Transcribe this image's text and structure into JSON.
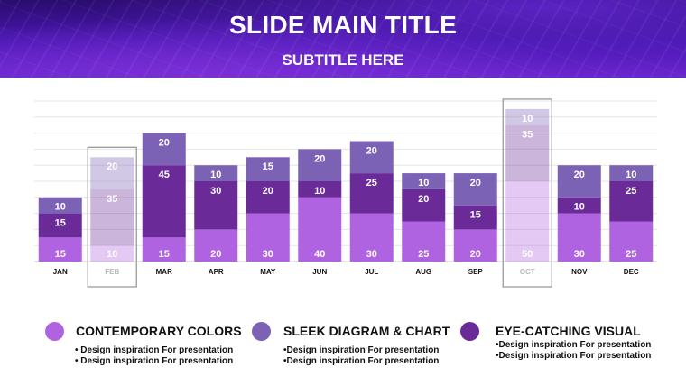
{
  "header": {
    "title": "SLIDE MAIN TITLE",
    "subtitle": "SUBTITLE HERE"
  },
  "colors": {
    "series_1": "#b063e0",
    "series_2": "#6a2b99",
    "series_3": "#7c62b5",
    "highlight_frame": "#9a9a9a",
    "label_text": "#ffffff"
  },
  "chart_data": {
    "type": "bar",
    "stacked": true,
    "categories": [
      "JAN",
      "FEB",
      "MAR",
      "APR",
      "MAY",
      "JUN",
      "JUL",
      "AUG",
      "SEP",
      "OCT",
      "NOV",
      "DEC"
    ],
    "series": [
      {
        "values": [
          15,
          10,
          15,
          20,
          30,
          40,
          30,
          25,
          20,
          50,
          30,
          25
        ]
      },
      {
        "values": [
          15,
          35,
          45,
          30,
          20,
          10,
          25,
          20,
          15,
          35,
          10,
          25
        ]
      },
      {
        "values": [
          10,
          20,
          20,
          10,
          15,
          20,
          20,
          10,
          20,
          10,
          20,
          10
        ]
      }
    ],
    "highlighted_categories": [
      "FEB",
      "OCT"
    ],
    "grid": true,
    "ylim": [
      0,
      100
    ]
  },
  "legend": [
    {
      "label": "CONTEMPORARY COLORS",
      "color": "#b063e0",
      "bullets": [
        "• Design inspiration For presentation",
        "• Design inspiration For presentation"
      ]
    },
    {
      "label": "SLEEK DIAGRAM & CHART",
      "color": "#7c62b5",
      "bullets": [
        "•Design inspiration For presentation",
        "•Design inspiration For presentation"
      ]
    },
    {
      "label": "EYE-CATCHING VISUAL",
      "color": "#6a2b99",
      "bullets": [
        "•Design inspiration For presentation",
        "•Design inspiration For presentation"
      ]
    }
  ]
}
